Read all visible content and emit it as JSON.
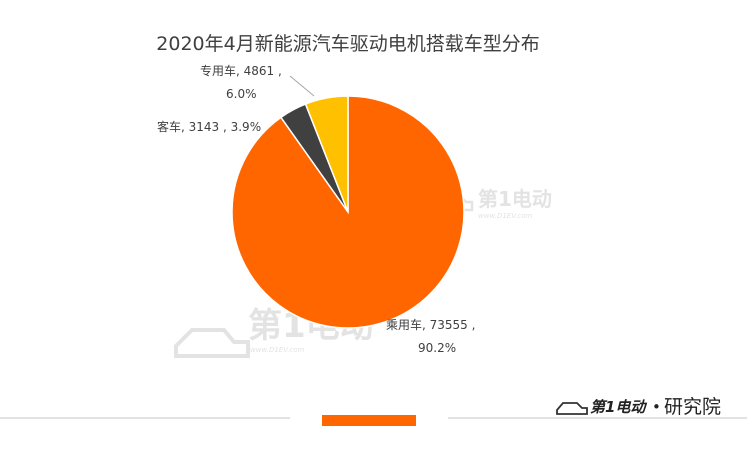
{
  "chart_data": {
    "type": "pie",
    "title": "2020年4月新能源汽车驱动电机搭载车型分布",
    "slices": [
      {
        "name": "乘用车",
        "value": 73555,
        "percent": "90.2%",
        "color": "#ff6600"
      },
      {
        "name": "客车",
        "value": 3143,
        "percent": "3.9%",
        "color": "#404040"
      },
      {
        "name": "专用车",
        "value": 4861,
        "percent": "6.0%",
        "color": "#ffc000"
      }
    ],
    "labels": [
      {
        "line1": "乘用车, 73555 ,",
        "line2": "90.2%"
      },
      {
        "line1": "客车, 3143 , 3.9%"
      },
      {
        "line1": "专用车, 4861 ,",
        "line2": "6.0%"
      }
    ]
  },
  "watermark": {
    "brand": "第1电动",
    "url": "www.D1EV.com"
  },
  "footer": {
    "brand_logo": "第1电动",
    "brand_suffix": "研究院",
    "separator": "•",
    "accent_color": "#ff6600"
  }
}
